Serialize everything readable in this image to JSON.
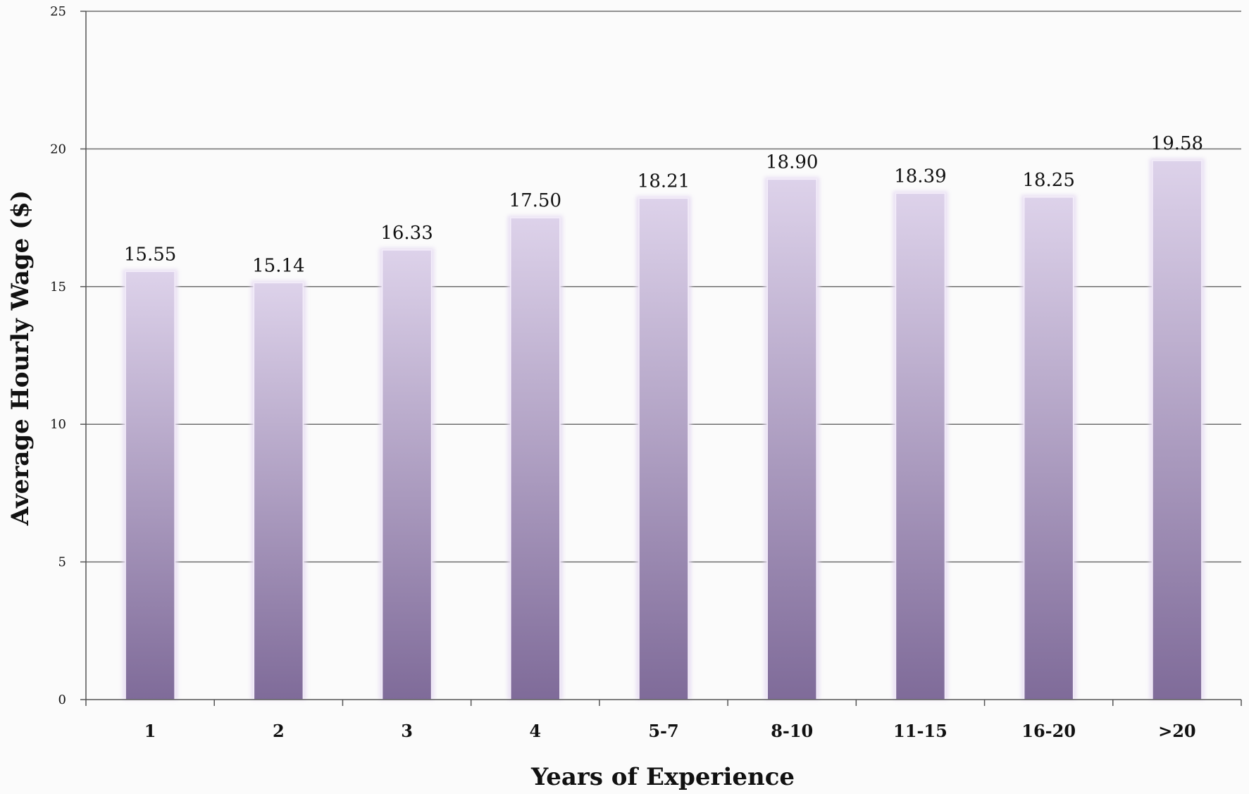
{
  "chart_data": {
    "type": "bar",
    "title": "",
    "xlabel": "Years of Experience",
    "ylabel": "Average Hourly Wage ($)",
    "categories": [
      "1",
      "2",
      "3",
      "4",
      "5-7",
      "8-10",
      "11-15",
      "16-20",
      ">20"
    ],
    "values": [
      15.55,
      15.14,
      16.33,
      17.5,
      18.21,
      18.9,
      18.39,
      18.25,
      19.58
    ],
    "value_labels": [
      "15.55",
      "15.14",
      "16.33",
      "17.50",
      "18.21",
      "18.90",
      "18.39",
      "18.25",
      "19.58"
    ],
    "ylim": [
      0,
      25
    ],
    "yticks": [
      0,
      5,
      10,
      15,
      20,
      25
    ],
    "ytick_labels": [
      "0",
      "5",
      "10",
      "15",
      "20",
      "25"
    ],
    "grid": true,
    "legend": "none",
    "colors": {
      "bar_top": "#ddd2ea",
      "bar_bottom": "#7f6b99",
      "bar_glow": "#e6dcf2",
      "gridline": "#6e6e6e",
      "text": "#111111"
    }
  }
}
